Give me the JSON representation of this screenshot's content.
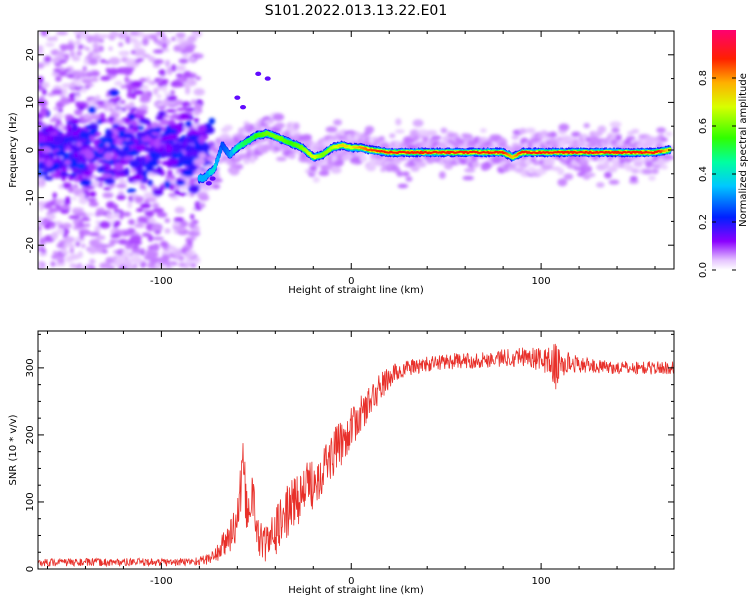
{
  "title": "S101.2022.013.13.22.E01",
  "colors": {
    "snr_line": "#e8302a",
    "ridge_core": "#e8302a",
    "background": "#ffffff"
  },
  "chart_data": [
    {
      "type": "heatmap",
      "title": "S101.2022.013.13.22.E01",
      "xlabel": "Height of straight line (km)",
      "ylabel": "Frequency (Hz)",
      "xlim": [
        -165,
        170
      ],
      "ylim": [
        -25,
        25
      ],
      "xticks": [
        -100,
        0,
        100
      ],
      "xtick_labels": [
        "-100",
        "0",
        "100"
      ],
      "yticks": [
        -20,
        -10,
        0,
        10,
        20
      ],
      "ytick_labels": [
        "-20",
        "-10",
        "0",
        "10",
        "20"
      ],
      "grid": false,
      "colorbar": {
        "label": "Normalized spectral amplitude",
        "range": [
          0,
          1
        ],
        "ticks": [
          0.0,
          0.2,
          0.4,
          0.6,
          0.8
        ],
        "tick_labels": [
          "0.0",
          "0.2",
          "0.4",
          "0.6",
          "0.8"
        ],
        "colormap": "gist_rainbow_r"
      },
      "ridge": {
        "x": [
          -78,
          -72,
          -68,
          -64,
          -60,
          -56,
          -50,
          -44,
          -38,
          -32,
          -26,
          -20,
          -15,
          -10,
          -5,
          0,
          5,
          10,
          20,
          40,
          60,
          80,
          85,
          90,
          100,
          120,
          140,
          160,
          168
        ],
        "y": [
          -6,
          -4,
          1,
          -1,
          0.5,
          1.5,
          3,
          3.5,
          2.5,
          1.5,
          0.5,
          -1.5,
          -1,
          0.5,
          1,
          0.5,
          0.5,
          0,
          -0.5,
          -0.5,
          -0.5,
          -0.5,
          -1.5,
          -0.5,
          -0.5,
          -0.5,
          -0.5,
          -0.5,
          0
        ],
        "amplitude": [
          0.35,
          0.4,
          0.25,
          0.3,
          0.45,
          0.5,
          0.55,
          0.6,
          0.6,
          0.55,
          0.6,
          0.7,
          0.6,
          0.65,
          0.75,
          0.7,
          0.8,
          0.85,
          0.9,
          0.95,
          0.95,
          0.9,
          0.75,
          0.9,
          0.95,
          0.95,
          0.95,
          0.95,
          0.7
        ]
      },
      "noise_region": {
        "x": [
          -165,
          -80
        ],
        "amplitude": 0.15
      }
    },
    {
      "type": "line",
      "xlabel": "Height of straight line (km)",
      "ylabel": "SNR (10 * v/v)",
      "xlim": [
        -165,
        170
      ],
      "ylim": [
        0,
        355
      ],
      "xticks": [
        -100,
        0,
        100
      ],
      "xtick_labels": [
        "-100",
        "0",
        "100"
      ],
      "yticks": [
        0,
        100,
        200,
        300
      ],
      "ytick_labels": [
        "0",
        "100",
        "200",
        "300"
      ],
      "grid": false,
      "series": [
        {
          "x": [
            -165,
            -140,
            -120,
            -100,
            -90,
            -80,
            -75,
            -70,
            -65,
            -60,
            -57,
            -55,
            -52,
            -50,
            -47,
            -45,
            -40,
            -35,
            -30,
            -25,
            -20,
            -15,
            -10,
            -5,
            0,
            5,
            10,
            15,
            20,
            25,
            30,
            40,
            50,
            60,
            70,
            80,
            90,
            95,
            100,
            105,
            108,
            110,
            115,
            120,
            130,
            140,
            150,
            160,
            170
          ],
          "y": [
            10,
            10,
            10,
            10,
            10,
            12,
            15,
            25,
            45,
            70,
            150,
            90,
            110,
            60,
            40,
            35,
            55,
            80,
            100,
            115,
            130,
            150,
            170,
            190,
            210,
            230,
            250,
            270,
            285,
            295,
            300,
            305,
            310,
            310,
            312,
            315,
            318,
            315,
            312,
            310,
            300,
            305,
            308,
            305,
            302,
            300,
            300,
            300,
            300
          ],
          "noise_amplitude": [
            6,
            6,
            6,
            6,
            6,
            7,
            8,
            15,
            25,
            35,
            40,
            40,
            40,
            30,
            30,
            30,
            35,
            40,
            40,
            40,
            40,
            38,
            35,
            35,
            30,
            28,
            25,
            22,
            18,
            15,
            12,
            12,
            12,
            12,
            12,
            14,
            15,
            16,
            18,
            22,
            40,
            25,
            15,
            12,
            10,
            10,
            10,
            10,
            10
          ]
        }
      ]
    }
  ]
}
